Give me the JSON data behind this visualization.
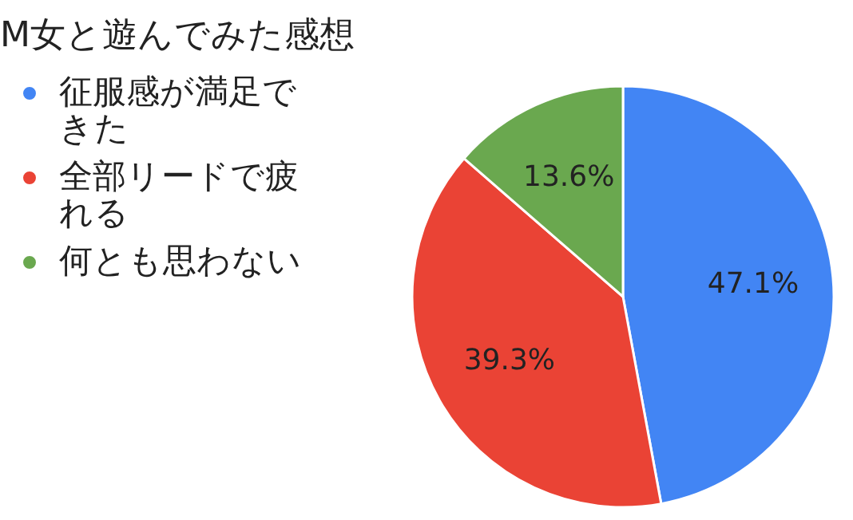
{
  "chart_data": {
    "type": "pie",
    "title": "M女と遊んでみた感想",
    "categories": [
      "征服感が満足できた",
      "全部リードで疲れる",
      "何とも思わない"
    ],
    "values": [
      47.1,
      39.3,
      13.6
    ],
    "colors": [
      "#4285f4",
      "#ea4335",
      "#6aa84f"
    ],
    "value_labels": [
      "47.1%",
      "39.3%",
      "13.6%"
    ],
    "legend": "left"
  }
}
